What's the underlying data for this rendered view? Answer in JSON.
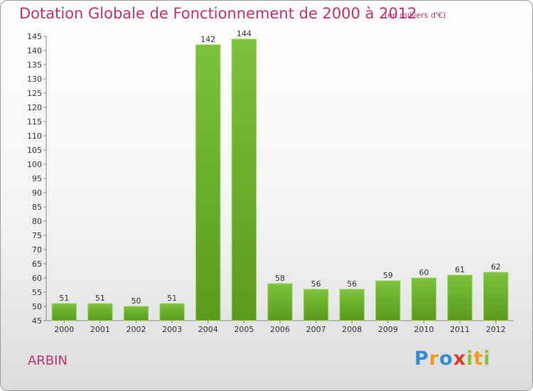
{
  "chart_data": {
    "type": "bar",
    "title": "Dotation Globale de Fonctionnement de 2000 à 2012",
    "subtitle": "(en milliers d'€)",
    "categories": [
      "2000",
      "2001",
      "2002",
      "2003",
      "2004",
      "2005",
      "2006",
      "2007",
      "2008",
      "2009",
      "2010",
      "2011",
      "2012"
    ],
    "values": [
      51,
      51,
      50,
      51,
      142,
      144,
      58,
      56,
      56,
      59,
      60,
      61,
      62
    ],
    "ylim": [
      45,
      145
    ],
    "ytick_step": 5,
    "grid": false,
    "bar_color": "#7cc13b",
    "bar_color_dark": "#5a9a1c"
  },
  "footer": {
    "town": "ARBIN",
    "logo_letters": [
      "P",
      "r",
      "o",
      "x",
      "i",
      "t",
      "i"
    ],
    "logo_colors": [
      "#2f8fd0",
      "#f29b1b",
      "#2f8fd0",
      "#e03a2f",
      "#8fc13a",
      "#f29b1b",
      "#8fc13a"
    ]
  },
  "colors": {
    "title": "#c4306f"
  }
}
